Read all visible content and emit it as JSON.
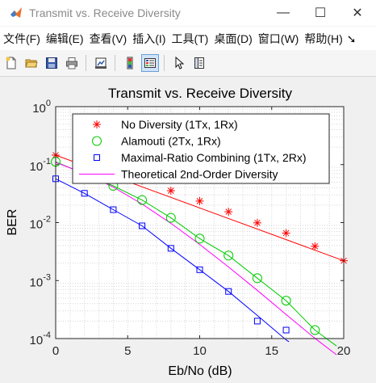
{
  "window": {
    "title": "Transmit vs. Receive Diversity",
    "minimize_glyph": "—",
    "maximize_glyph": "☐",
    "close_glyph": "✕"
  },
  "menu": {
    "items": [
      "文件(F)",
      "编辑(E)",
      "查看(V)",
      "插入(I)",
      "工具(T)",
      "桌面(D)",
      "窗口(W)",
      "帮助(H)"
    ],
    "overflow_glyph": "➘"
  },
  "toolbar": {
    "buttons": [
      "new-figure-icon",
      "open-file-icon",
      "save-icon",
      "print-icon",
      "link-plot-icon",
      "insert-colorbar-icon",
      "insert-legend-icon",
      "edit-plot-arrow-icon",
      "property-inspector-icon"
    ]
  },
  "colors": {
    "background": "#f0f0f0",
    "axes_background": "#ffffff",
    "no_diversity": "#ff0000",
    "alamouti": "#00cc00",
    "mrc": "#0000ff",
    "theoretical": "#ff00ff"
  },
  "chart_data": {
    "type": "line",
    "title": "Transmit vs. Receive Diversity",
    "xlabel": "Eb/No (dB)",
    "ylabel": "BER",
    "xlim": [
      0,
      20
    ],
    "ylim": [
      0.0001,
      1
    ],
    "yscale": "log",
    "grid": "minor-dotted",
    "legend_position": "top-right",
    "xticks": [
      "0",
      "5",
      "10",
      "15",
      "20"
    ],
    "yticks": [
      {
        "base": "10",
        "exp": "0",
        "value": 1
      },
      {
        "base": "10",
        "exp": "-1",
        "value": 0.1
      },
      {
        "base": "10",
        "exp": "-2",
        "value": 0.01
      },
      {
        "base": "10",
        "exp": "-3",
        "value": 0.001
      },
      {
        "base": "10",
        "exp": "-4",
        "value": 0.0001
      }
    ],
    "series": [
      {
        "name": "No Diversity (1Tx, 1Rx)",
        "marker": "star",
        "color": "#ff0000",
        "x": [
          0,
          2,
          4,
          6,
          8,
          10,
          12,
          14,
          16,
          18,
          20
        ],
        "y": [
          0.146,
          0.104,
          0.0755,
          0.0535,
          0.0355,
          0.0235,
          0.0154,
          0.0099,
          0.0066,
          0.0039,
          0.0022
        ]
      },
      {
        "name": "Alamouti (2Tx, 1Rx)",
        "marker": "circle",
        "color": "#00cc00",
        "x": [
          0,
          2,
          4,
          6,
          8,
          10,
          12,
          14,
          16,
          18
        ],
        "y": [
          0.112,
          0.069,
          0.043,
          0.0245,
          0.0121,
          0.0053,
          0.0027,
          0.0011,
          0.00045,
          0.00014
        ]
      },
      {
        "name": "Maximal-Ratio Combining (1Tx, 2Rx)",
        "marker": "square",
        "color": "#0000ff",
        "x": [
          0,
          2,
          4,
          6,
          8,
          10,
          12,
          14,
          16
        ],
        "y": [
          0.057,
          0.032,
          0.0167,
          0.0088,
          0.0036,
          0.00154,
          0.00065,
          0.0002,
          0.00014
        ]
      },
      {
        "name": "Theoretical 2nd-Order Diversity",
        "marker": "none",
        "color": "#ff00ff",
        "x": [
          0,
          2,
          4,
          6,
          8,
          10,
          12,
          14,
          16,
          18,
          19.5
        ],
        "y": [
          0.1094,
          0.0707,
          0.0409,
          0.0209,
          0.0097,
          0.0042,
          0.00172,
          0.00068,
          0.00026,
          0.000101,
          5.24e-05
        ]
      }
    ],
    "fit_lines": [
      {
        "color": "#ff0000",
        "x": [
          0,
          20
        ],
        "y": [
          0.146,
          0.0022
        ]
      },
      {
        "color": "#00cc00",
        "x": [
          0,
          2,
          4,
          6,
          8,
          10,
          12,
          14,
          16,
          18,
          19.5
        ],
        "y": [
          0.112,
          0.069,
          0.043,
          0.0245,
          0.0121,
          0.0053,
          0.0027,
          0.0011,
          0.00045,
          0.00014,
          7.45e-05
        ]
      },
      {
        "color": "#0000ff",
        "x": [
          0,
          2,
          4,
          6,
          8,
          10,
          12,
          14,
          16,
          16.2
        ],
        "y": [
          0.057,
          0.032,
          0.0167,
          0.0088,
          0.0036,
          0.00154,
          0.00065,
          0.00025,
          9.5e-05,
          8.8e-05
        ]
      }
    ]
  }
}
